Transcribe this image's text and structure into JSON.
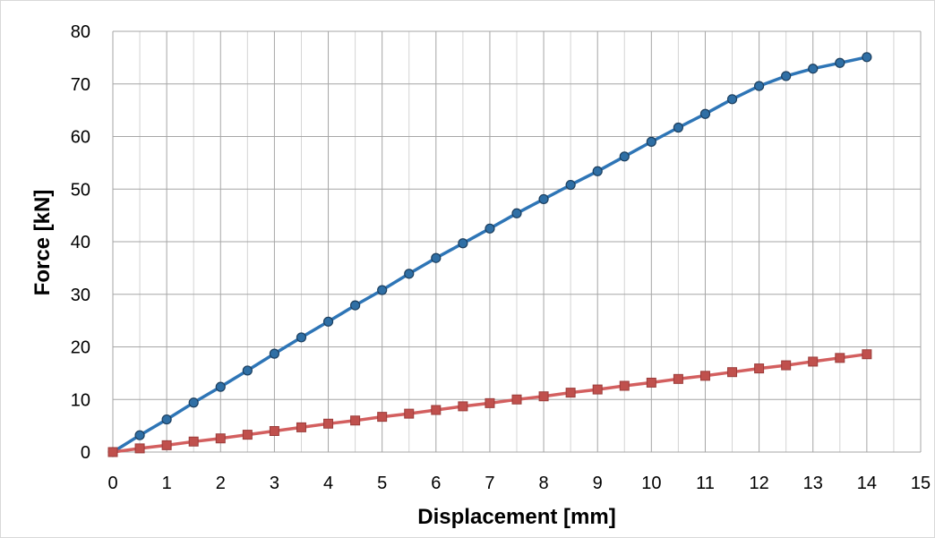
{
  "chart_data": {
    "type": "line",
    "title": "",
    "xlabel": "Displacement [mm]",
    "ylabel": "Force [kN]",
    "xlim": [
      0,
      15
    ],
    "ylim": [
      0,
      80
    ],
    "xticks": [
      0,
      1,
      2,
      3,
      4,
      5,
      6,
      7,
      8,
      9,
      10,
      11,
      12,
      13,
      14,
      15
    ],
    "yticks": [
      0,
      10,
      20,
      30,
      40,
      50,
      60,
      70,
      80
    ],
    "grid": true,
    "legend": "none",
    "series": [
      {
        "color": "#2e75b6",
        "marker": "circle",
        "marker_color": "#2f6fa5",
        "x": [
          0,
          0.5,
          1,
          1.5,
          2,
          2.5,
          3,
          3.5,
          4,
          4.5,
          5,
          5.5,
          6,
          6.5,
          7,
          7.5,
          8,
          8.5,
          9,
          9.5,
          10,
          10.5,
          11,
          11.5,
          12,
          12.5,
          13,
          13.5,
          14
        ],
        "y": [
          0,
          3.2,
          6.2,
          9.4,
          12.4,
          15.5,
          18.7,
          21.8,
          24.8,
          27.9,
          30.8,
          33.9,
          36.9,
          39.7,
          42.5,
          45.4,
          48.1,
          50.8,
          53.4,
          56.2,
          59.0,
          61.7,
          64.3,
          67.1,
          69.6,
          71.5,
          72.9,
          74.0,
          75.1
        ]
      },
      {
        "color": "#d35f5f",
        "marker": "square",
        "marker_color": "#c0504d",
        "x": [
          0,
          0.5,
          1,
          1.5,
          2,
          2.5,
          3,
          3.5,
          4,
          4.5,
          5,
          5.5,
          6,
          6.5,
          7,
          7.5,
          8,
          8.5,
          9,
          9.5,
          10,
          10.5,
          11,
          11.5,
          12,
          12.5,
          13,
          13.5,
          14
        ],
        "y": [
          0,
          0.7,
          1.3,
          2.0,
          2.6,
          3.3,
          4.0,
          4.7,
          5.4,
          6.0,
          6.7,
          7.3,
          8.0,
          8.7,
          9.3,
          10.0,
          10.6,
          11.3,
          11.9,
          12.6,
          13.2,
          13.9,
          14.5,
          15.2,
          15.9,
          16.5,
          17.2,
          17.9,
          18.6
        ]
      }
    ]
  }
}
